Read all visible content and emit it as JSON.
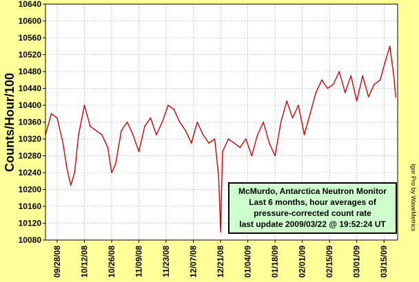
{
  "chart_data": {
    "type": "line",
    "ylabel": "Counts/Hour/100",
    "ylim": [
      10080,
      10640
    ],
    "yticks": [
      10080,
      10120,
      10160,
      10200,
      10240,
      10280,
      10320,
      10360,
      10400,
      10440,
      10480,
      10520,
      10560,
      10600,
      10640
    ],
    "xticks": [
      "09/28/08",
      "10/12/08",
      "10/26/08",
      "11/09/08",
      "11/23/08",
      "12/07/08",
      "12/21/08",
      "01/04/09",
      "01/18/09",
      "02/01/09",
      "02/15/09",
      "03/01/09",
      "03/15/09"
    ],
    "xlim": [
      "2008-09-22",
      "2009-03-22"
    ],
    "grid": true,
    "series": [
      {
        "color": "#cc0000",
        "points": [
          [
            "2008-09-22",
            10330
          ],
          [
            "2008-09-25",
            10380
          ],
          [
            "2008-09-28",
            10370
          ],
          [
            "2008-10-01",
            10310
          ],
          [
            "2008-10-03",
            10250
          ],
          [
            "2008-10-05",
            10210
          ],
          [
            "2008-10-07",
            10240
          ],
          [
            "2008-10-09",
            10330
          ],
          [
            "2008-10-12",
            10400
          ],
          [
            "2008-10-15",
            10350
          ],
          [
            "2008-10-18",
            10340
          ],
          [
            "2008-10-21",
            10330
          ],
          [
            "2008-10-24",
            10300
          ],
          [
            "2008-10-26",
            10240
          ],
          [
            "2008-10-28",
            10260
          ],
          [
            "2008-10-31",
            10340
          ],
          [
            "2008-11-03",
            10360
          ],
          [
            "2008-11-06",
            10330
          ],
          [
            "2008-11-09",
            10290
          ],
          [
            "2008-11-12",
            10350
          ],
          [
            "2008-11-15",
            10370
          ],
          [
            "2008-11-18",
            10330
          ],
          [
            "2008-11-21",
            10360
          ],
          [
            "2008-11-24",
            10400
          ],
          [
            "2008-11-27",
            10390
          ],
          [
            "2008-11-30",
            10360
          ],
          [
            "2008-12-03",
            10340
          ],
          [
            "2008-12-06",
            10310
          ],
          [
            "2008-12-09",
            10360
          ],
          [
            "2008-12-12",
            10330
          ],
          [
            "2008-12-15",
            10310
          ],
          [
            "2008-12-18",
            10320
          ],
          [
            "2008-12-20",
            10230
          ],
          [
            "2008-12-21",
            10100
          ],
          [
            "2008-12-22",
            10290
          ],
          [
            "2008-12-25",
            10320
          ],
          [
            "2008-12-28",
            10310
          ],
          [
            "2008-12-31",
            10300
          ],
          [
            "2009-01-03",
            10320
          ],
          [
            "2009-01-06",
            10280
          ],
          [
            "2009-01-09",
            10330
          ],
          [
            "2009-01-12",
            10360
          ],
          [
            "2009-01-15",
            10310
          ],
          [
            "2009-01-18",
            10280
          ],
          [
            "2009-01-21",
            10360
          ],
          [
            "2009-01-24",
            10410
          ],
          [
            "2009-01-27",
            10370
          ],
          [
            "2009-01-30",
            10400
          ],
          [
            "2009-02-02",
            10330
          ],
          [
            "2009-02-05",
            10380
          ],
          [
            "2009-02-08",
            10430
          ],
          [
            "2009-02-11",
            10460
          ],
          [
            "2009-02-14",
            10440
          ],
          [
            "2009-02-17",
            10450
          ],
          [
            "2009-02-20",
            10480
          ],
          [
            "2009-02-23",
            10430
          ],
          [
            "2009-02-26",
            10470
          ],
          [
            "2009-03-01",
            10410
          ],
          [
            "2009-03-04",
            10470
          ],
          [
            "2009-03-07",
            10420
          ],
          [
            "2009-03-10",
            10450
          ],
          [
            "2009-03-13",
            10460
          ],
          [
            "2009-03-16",
            10510
          ],
          [
            "2009-03-18",
            10540
          ],
          [
            "2009-03-20",
            10470
          ],
          [
            "2009-03-21",
            10420
          ]
        ]
      }
    ]
  },
  "annotation": {
    "line1": "McMurdo, Antarctica Neutron Monitor",
    "line2": "Last 6 months, hour averages of",
    "line3": "pressure-corrected count rate",
    "line4": "last update 2009/03/22 @ 19:52:24 UT"
  },
  "credit": "Igor Pro by WaveMetrics",
  "colors": {
    "background": "#ffff99",
    "plot_bg": "#ffffff",
    "series": "#cc0000",
    "grid": "#a0a0a0",
    "box": "#ccffcc"
  }
}
